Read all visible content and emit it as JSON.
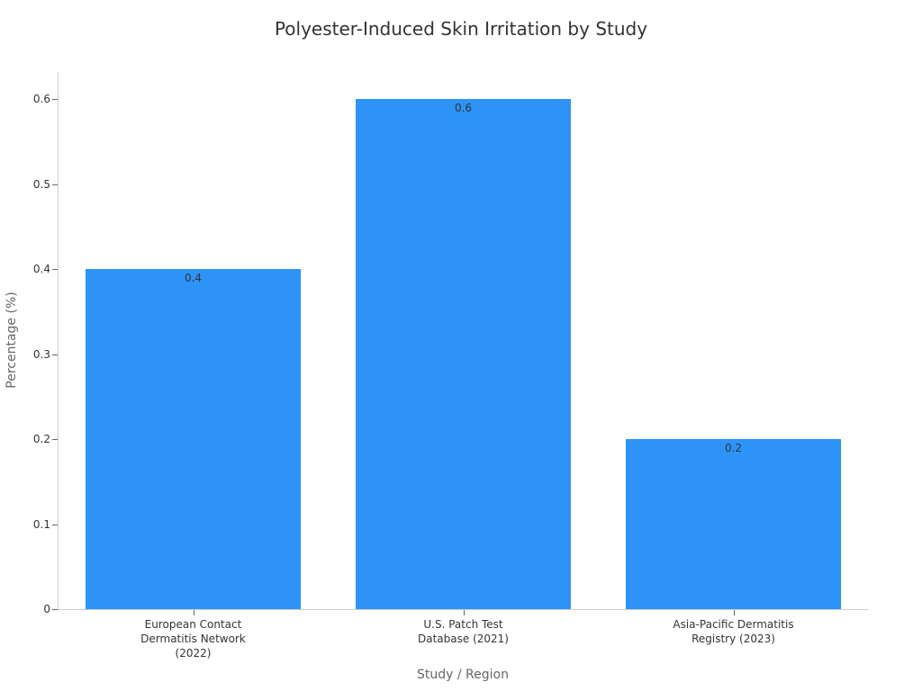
{
  "chart_data": {
    "type": "bar",
    "title": "Polyester-Induced Skin Irritation by Study",
    "xlabel": "Study / Region",
    "ylabel": "Percentage (%)",
    "categories": [
      "European Contact\nDermatitis Network\n(2022)",
      "U.S. Patch Test\nDatabase (2021)",
      "Asia-Pacific Dermatitis\nRegistry (2023)"
    ],
    "values": [
      0.4,
      0.6,
      0.2
    ],
    "value_labels": [
      "0.4",
      "0.6",
      "0.2"
    ],
    "yticks": [
      "0",
      "0.1",
      "0.2",
      "0.3",
      "0.4",
      "0.5",
      "0.6"
    ],
    "ylim": [
      0,
      0.63
    ],
    "grid": false,
    "legend": null,
    "bar_color": "#2e93f7"
  }
}
